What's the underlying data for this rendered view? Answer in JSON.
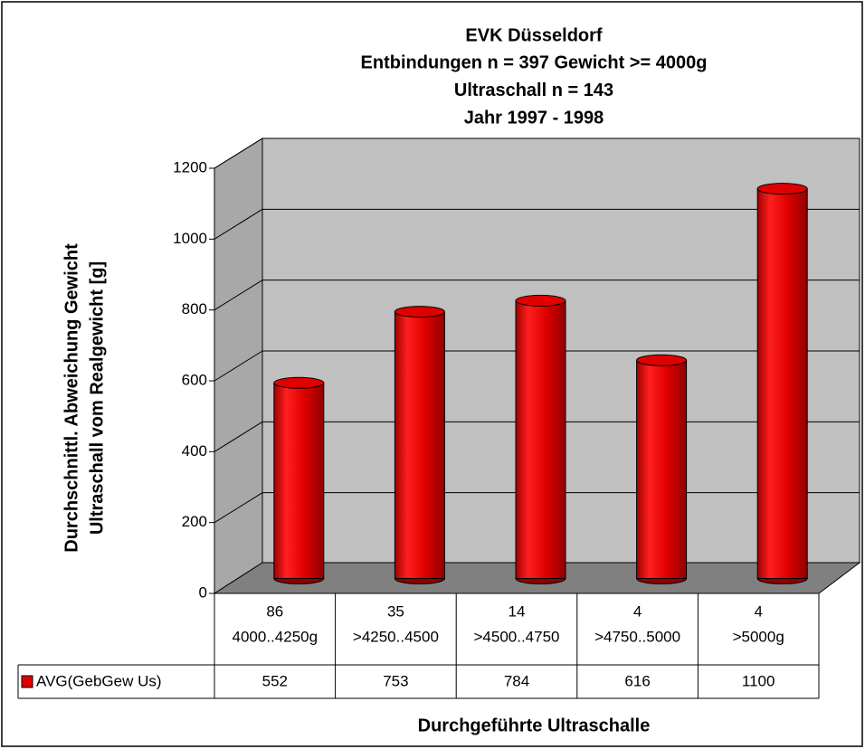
{
  "chart_data": {
    "type": "bar",
    "title": "EVK Düsseldorf",
    "subtitle": [
      "Entbindungen n = 397   Gewicht >= 4000g",
      "Ultraschall n = 143",
      "Jahr 1997 - 1998"
    ],
    "y_label": [
      "Durchschnittl. Abweichung Gewicht",
      "Ultraschall vom Realgewicht [g]"
    ],
    "x_label": "Durchgeführte Ultraschalle",
    "categories": [
      [
        "86",
        "4000..4250g"
      ],
      [
        "35",
        ">4250..4500"
      ],
      [
        "14",
        ">4500..4750"
      ],
      [
        "4",
        ">4750..5000"
      ],
      [
        "4",
        ">5000g"
      ]
    ],
    "series": [
      {
        "name": "AVG(GebGew Us)",
        "color": "#e00000",
        "values": [
          552,
          753,
          784,
          616,
          1100
        ]
      }
    ],
    "ylim": [
      0,
      1200
    ],
    "yticks": [
      0,
      200,
      400,
      600,
      800,
      1000,
      1200
    ],
    "grid": true
  }
}
